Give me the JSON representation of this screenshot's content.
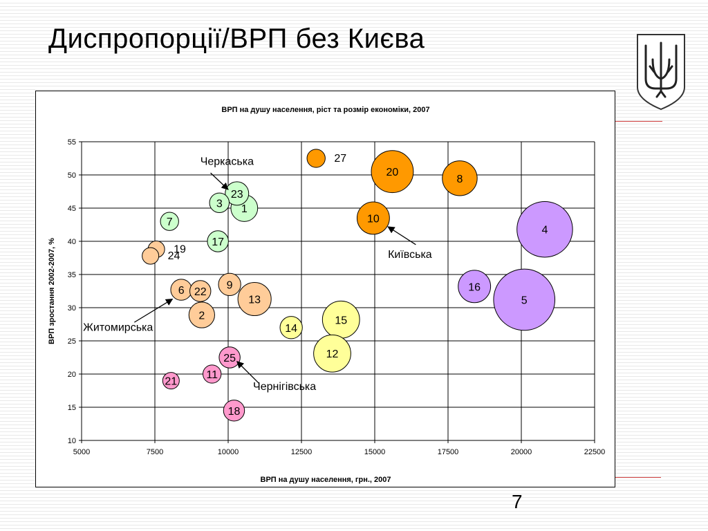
{
  "slide": {
    "title": "Диспропорції/ВРП без Києва",
    "page_number": "7"
  },
  "colors": {
    "green": "#ccffcc",
    "orange": "#ff9900",
    "light_orange": "#ffcc99",
    "pink": "#ff99cc",
    "yellow": "#ffff99",
    "purple": "#cc99ff",
    "accent_line": "#d04040"
  },
  "chart_data": {
    "type": "bubble",
    "title": "ВРП на душу населення, ріст та розмір економіки, 2007",
    "xlabel": "ВРП на душу населення, грн., 2007",
    "ylabel": "ВРП зростання 2002-2007, %",
    "xlim": [
      5000,
      22500
    ],
    "ylim": [
      10,
      55
    ],
    "xticks": [
      5000,
      7500,
      10000,
      12500,
      15000,
      17500,
      20000,
      22500
    ],
    "yticks": [
      10,
      15,
      20,
      25,
      30,
      35,
      40,
      45,
      50,
      55
    ],
    "grid": true,
    "points": [
      {
        "label": "27",
        "x": 13000,
        "y": 52.5,
        "size": 0.6,
        "color": "#ff9900",
        "label_outside": true
      },
      {
        "label": "20",
        "x": 15600,
        "y": 50.5,
        "size": 3.2,
        "color": "#ff9900"
      },
      {
        "label": "8",
        "x": 17900,
        "y": 49.5,
        "size": 2.2,
        "color": "#ff9900"
      },
      {
        "label": "10",
        "x": 14950,
        "y": 43.5,
        "size": 1.9,
        "color": "#ff9900"
      },
      {
        "label": "4",
        "x": 20800,
        "y": 41.8,
        "size": 5.6,
        "color": "#cc99ff"
      },
      {
        "label": "16",
        "x": 18400,
        "y": 33.2,
        "size": 1.9,
        "color": "#cc99ff"
      },
      {
        "label": "5",
        "x": 20100,
        "y": 31.2,
        "size": 6.8,
        "color": "#cc99ff"
      },
      {
        "label": "23",
        "x": 10300,
        "y": 47.2,
        "size": 1.0,
        "color": "#ccffcc"
      },
      {
        "label": "3",
        "x": 9700,
        "y": 45.8,
        "size": 0.7,
        "color": "#ccffcc"
      },
      {
        "label": "1",
        "x": 10550,
        "y": 45.0,
        "size": 1.3,
        "color": "#ccffcc"
      },
      {
        "label": "7",
        "x": 8000,
        "y": 43.0,
        "size": 0.6,
        "color": "#ccffcc"
      },
      {
        "label": "17",
        "x": 9650,
        "y": 40.0,
        "size": 0.8,
        "color": "#ccffcc"
      },
      {
        "label": "19",
        "x": 7550,
        "y": 38.8,
        "size": 0.5,
        "color": "#ffcc99",
        "label_outside": true
      },
      {
        "label": "24",
        "x": 7350,
        "y": 37.8,
        "size": 0.5,
        "color": "#ffcc99",
        "label_outside": true
      },
      {
        "label": "9",
        "x": 10050,
        "y": 33.5,
        "size": 0.9,
        "color": "#ffcc99"
      },
      {
        "label": "6",
        "x": 8400,
        "y": 32.7,
        "size": 0.8,
        "color": "#ffcc99"
      },
      {
        "label": "22",
        "x": 9050,
        "y": 32.5,
        "size": 0.8,
        "color": "#ffcc99"
      },
      {
        "label": "13",
        "x": 10900,
        "y": 31.3,
        "size": 2.0,
        "color": "#ffcc99"
      },
      {
        "label": "2",
        "x": 9100,
        "y": 28.9,
        "size": 1.2,
        "color": "#ffcc99"
      },
      {
        "label": "14",
        "x": 12150,
        "y": 27.0,
        "size": 0.9,
        "color": "#ffff99"
      },
      {
        "label": "15",
        "x": 13850,
        "y": 28.2,
        "size": 2.5,
        "color": "#ffff99"
      },
      {
        "label": "12",
        "x": 13550,
        "y": 23.1,
        "size": 2.5,
        "color": "#ffff99"
      },
      {
        "label": "25",
        "x": 10050,
        "y": 22.5,
        "size": 0.8,
        "color": "#ff99cc"
      },
      {
        "label": "11",
        "x": 9450,
        "y": 20.0,
        "size": 0.6,
        "color": "#ff99cc"
      },
      {
        "label": "21",
        "x": 8050,
        "y": 19.0,
        "size": 0.5,
        "color": "#ff99cc"
      },
      {
        "label": "18",
        "x": 10200,
        "y": 14.5,
        "size": 0.8,
        "color": "#ff99cc"
      }
    ],
    "annotations": [
      {
        "text": "Черкаська",
        "text_x": 9050,
        "text_y": 51.5,
        "arrow_to": [
          10000,
          47.8
        ],
        "arrow_from": [
          9400,
          50.3
        ]
      },
      {
        "text": "Київська",
        "text_x": 15450,
        "text_y": 37.5,
        "arrow_to": [
          15450,
          42.2
        ],
        "arrow_from": [
          16400,
          39.5
        ]
      },
      {
        "text": "Житомирська",
        "text_x": 5050,
        "text_y": 26.5,
        "arrow_to": [
          8100,
          31.3
        ],
        "arrow_from": [
          6800,
          27.8
        ]
      },
      {
        "text": "Чернігівська",
        "text_x": 10850,
        "text_y": 17.6,
        "arrow_to": [
          10300,
          21.9
        ],
        "arrow_from": [
          11050,
          18.6
        ]
      }
    ]
  }
}
